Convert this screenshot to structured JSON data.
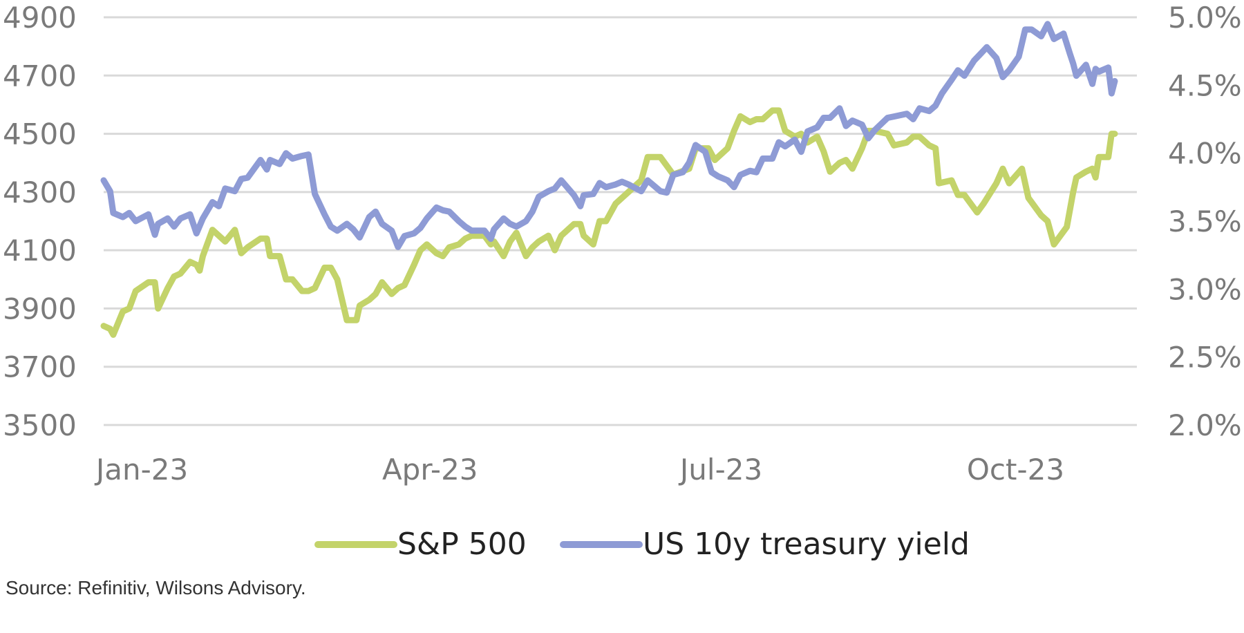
{
  "source_note": "Source: Refinitiv, Wilsons Advisory.",
  "chart_data": {
    "type": "line",
    "title": "",
    "xlabel": "",
    "ylabel": "",
    "x_ticks": [
      "Jan-23",
      "Apr-23",
      "Jul-23",
      "Oct-23"
    ],
    "y_left": {
      "min": 3500,
      "max": 4900,
      "ticks": [
        4900,
        4700,
        4500,
        4300,
        4100,
        3900,
        3700,
        3500
      ]
    },
    "y_right": {
      "min": 2.0,
      "max": 5.0,
      "ticks": [
        "5.0%",
        "4.5%",
        "4.0%",
        "3.5%",
        "3.0%",
        "2.5%",
        "2.0%"
      ]
    },
    "grid": true,
    "legend_position": "bottom",
    "series": [
      {
        "name": "S&P 500",
        "axis": "left",
        "color": "#c3d36a",
        "points": [
          [
            "2023-01-03",
            3840
          ],
          [
            "2023-01-05",
            3830
          ],
          [
            "2023-01-06",
            3810
          ],
          [
            "2023-01-09",
            3890
          ],
          [
            "2023-01-11",
            3900
          ],
          [
            "2023-01-13",
            3960
          ],
          [
            "2023-01-17",
            3990
          ],
          [
            "2023-01-19",
            3990
          ],
          [
            "2023-01-20",
            3900
          ],
          [
            "2023-01-23",
            3970
          ],
          [
            "2023-01-25",
            4010
          ],
          [
            "2023-01-27",
            4020
          ],
          [
            "2023-01-30",
            4060
          ],
          [
            "2023-02-01",
            4050
          ],
          [
            "2023-02-02",
            4030
          ],
          [
            "2023-02-03",
            4080
          ],
          [
            "2023-02-06",
            4170
          ],
          [
            "2023-02-08",
            4150
          ],
          [
            "2023-02-10",
            4130
          ],
          [
            "2023-02-13",
            4170
          ],
          [
            "2023-02-15",
            4090
          ],
          [
            "2023-02-17",
            4110
          ],
          [
            "2023-02-21",
            4140
          ],
          [
            "2023-02-23",
            4140
          ],
          [
            "2023-02-24",
            4080
          ],
          [
            "2023-02-27",
            4080
          ],
          [
            "2023-03-01",
            4000
          ],
          [
            "2023-03-03",
            4000
          ],
          [
            "2023-03-06",
            3960
          ],
          [
            "2023-03-08",
            3960
          ],
          [
            "2023-03-10",
            3970
          ],
          [
            "2023-03-13",
            4040
          ],
          [
            "2023-03-15",
            4040
          ],
          [
            "2023-03-17",
            4000
          ],
          [
            "2023-03-20",
            3860
          ],
          [
            "2023-03-23",
            3860
          ],
          [
            "2023-03-24",
            3910
          ],
          [
            "2023-03-27",
            3930
          ],
          [
            "2023-03-29",
            3950
          ],
          [
            "2023-03-31",
            3990
          ],
          [
            "2023-04-03",
            3950
          ],
          [
            "2023-04-05",
            3970
          ],
          [
            "2023-04-07",
            3980
          ],
          [
            "2023-04-10",
            4050
          ],
          [
            "2023-04-12",
            4100
          ],
          [
            "2023-04-14",
            4120
          ],
          [
            "2023-04-17",
            4090
          ],
          [
            "2023-04-19",
            4080
          ],
          [
            "2023-04-21",
            4110
          ],
          [
            "2023-04-24",
            4120
          ],
          [
            "2023-04-26",
            4140
          ],
          [
            "2023-04-28",
            4150
          ],
          [
            "2023-05-02",
            4150
          ],
          [
            "2023-05-04",
            4120
          ],
          [
            "2023-05-05",
            4130
          ],
          [
            "2023-05-08",
            4080
          ],
          [
            "2023-05-10",
            4130
          ],
          [
            "2023-05-12",
            4160
          ],
          [
            "2023-05-15",
            4080
          ],
          [
            "2023-05-17",
            4110
          ],
          [
            "2023-05-19",
            4130
          ],
          [
            "2023-05-22",
            4150
          ],
          [
            "2023-05-24",
            4100
          ],
          [
            "2023-05-26",
            4150
          ],
          [
            "2023-05-30",
            4190
          ],
          [
            "2023-06-01",
            4190
          ],
          [
            "2023-06-02",
            4150
          ],
          [
            "2023-06-05",
            4120
          ],
          [
            "2023-06-07",
            4200
          ],
          [
            "2023-06-09",
            4200
          ],
          [
            "2023-06-12",
            4260
          ],
          [
            "2023-06-14",
            4280
          ],
          [
            "2023-06-16",
            4300
          ],
          [
            "2023-06-20",
            4340
          ],
          [
            "2023-06-22",
            4420
          ],
          [
            "2023-06-26",
            4420
          ],
          [
            "2023-06-28",
            4390
          ],
          [
            "2023-06-30",
            4360
          ],
          [
            "2023-07-05",
            4380
          ],
          [
            "2023-07-07",
            4450
          ],
          [
            "2023-07-11",
            4450
          ],
          [
            "2023-07-13",
            4410
          ],
          [
            "2023-07-17",
            4450
          ],
          [
            "2023-07-19",
            4510
          ],
          [
            "2023-07-21",
            4560
          ],
          [
            "2023-07-24",
            4540
          ],
          [
            "2023-07-26",
            4550
          ],
          [
            "2023-07-28",
            4550
          ],
          [
            "2023-07-31",
            4580
          ],
          [
            "2023-08-02",
            4580
          ],
          [
            "2023-08-04",
            4510
          ],
          [
            "2023-08-07",
            4490
          ],
          [
            "2023-08-09",
            4500
          ],
          [
            "2023-08-11",
            4470
          ],
          [
            "2023-08-14",
            4490
          ],
          [
            "2023-08-16",
            4440
          ],
          [
            "2023-08-18",
            4370
          ],
          [
            "2023-08-21",
            4400
          ],
          [
            "2023-08-23",
            4410
          ],
          [
            "2023-08-25",
            4380
          ],
          [
            "2023-08-28",
            4450
          ],
          [
            "2023-08-30",
            4510
          ],
          [
            "2023-09-01",
            4510
          ],
          [
            "2023-09-05",
            4500
          ],
          [
            "2023-09-07",
            4460
          ],
          [
            "2023-09-11",
            4470
          ],
          [
            "2023-09-13",
            4490
          ],
          [
            "2023-09-15",
            4490
          ],
          [
            "2023-09-18",
            4460
          ],
          [
            "2023-09-20",
            4450
          ],
          [
            "2023-09-21",
            4330
          ],
          [
            "2023-09-25",
            4340
          ],
          [
            "2023-09-27",
            4290
          ],
          [
            "2023-09-29",
            4290
          ],
          [
            "2023-10-03",
            4230
          ],
          [
            "2023-10-05",
            4260
          ],
          [
            "2023-10-09",
            4330
          ],
          [
            "2023-10-11",
            4380
          ],
          [
            "2023-10-13",
            4330
          ],
          [
            "2023-10-17",
            4380
          ],
          [
            "2023-10-19",
            4280
          ],
          [
            "2023-10-23",
            4220
          ],
          [
            "2023-10-25",
            4200
          ],
          [
            "2023-10-27",
            4120
          ],
          [
            "2023-10-31",
            4180
          ],
          [
            "2023-11-02",
            4300
          ],
          [
            "2023-11-03",
            4350
          ],
          [
            "2023-11-06",
            4370
          ],
          [
            "2023-11-08",
            4380
          ],
          [
            "2023-11-09",
            4350
          ],
          [
            "2023-11-10",
            4420
          ],
          [
            "2023-11-13",
            4420
          ],
          [
            "2023-11-14",
            4500
          ],
          [
            "2023-11-15",
            4500
          ]
        ]
      },
      {
        "name": "US 10y treasury yield",
        "axis": "right",
        "color": "#8e9bd5",
        "points": [
          [
            "2023-01-03",
            3.8
          ],
          [
            "2023-01-05",
            3.72
          ],
          [
            "2023-01-06",
            3.56
          ],
          [
            "2023-01-09",
            3.53
          ],
          [
            "2023-01-11",
            3.56
          ],
          [
            "2023-01-13",
            3.5
          ],
          [
            "2023-01-17",
            3.55
          ],
          [
            "2023-01-19",
            3.4
          ],
          [
            "2023-01-20",
            3.48
          ],
          [
            "2023-01-23",
            3.52
          ],
          [
            "2023-01-25",
            3.46
          ],
          [
            "2023-01-27",
            3.52
          ],
          [
            "2023-01-30",
            3.55
          ],
          [
            "2023-02-01",
            3.41
          ],
          [
            "2023-02-03",
            3.52
          ],
          [
            "2023-02-06",
            3.64
          ],
          [
            "2023-02-08",
            3.61
          ],
          [
            "2023-02-10",
            3.74
          ],
          [
            "2023-02-13",
            3.72
          ],
          [
            "2023-02-15",
            3.81
          ],
          [
            "2023-02-17",
            3.82
          ],
          [
            "2023-02-21",
            3.95
          ],
          [
            "2023-02-23",
            3.88
          ],
          [
            "2023-02-24",
            3.95
          ],
          [
            "2023-02-27",
            3.92
          ],
          [
            "2023-03-01",
            4.0
          ],
          [
            "2023-03-03",
            3.96
          ],
          [
            "2023-03-06",
            3.98
          ],
          [
            "2023-03-08",
            3.99
          ],
          [
            "2023-03-10",
            3.7
          ],
          [
            "2023-03-13",
            3.55
          ],
          [
            "2023-03-15",
            3.46
          ],
          [
            "2023-03-17",
            3.43
          ],
          [
            "2023-03-20",
            3.48
          ],
          [
            "2023-03-22",
            3.44
          ],
          [
            "2023-03-24",
            3.38
          ],
          [
            "2023-03-27",
            3.53
          ],
          [
            "2023-03-29",
            3.57
          ],
          [
            "2023-03-31",
            3.48
          ],
          [
            "2023-04-03",
            3.43
          ],
          [
            "2023-04-05",
            3.31
          ],
          [
            "2023-04-07",
            3.39
          ],
          [
            "2023-04-10",
            3.41
          ],
          [
            "2023-04-12",
            3.45
          ],
          [
            "2023-04-14",
            3.52
          ],
          [
            "2023-04-17",
            3.6
          ],
          [
            "2023-04-19",
            3.58
          ],
          [
            "2023-04-21",
            3.57
          ],
          [
            "2023-04-24",
            3.5
          ],
          [
            "2023-04-26",
            3.46
          ],
          [
            "2023-04-28",
            3.43
          ],
          [
            "2023-05-02",
            3.43
          ],
          [
            "2023-05-04",
            3.37
          ],
          [
            "2023-05-05",
            3.44
          ],
          [
            "2023-05-08",
            3.52
          ],
          [
            "2023-05-10",
            3.48
          ],
          [
            "2023-05-12",
            3.46
          ],
          [
            "2023-05-15",
            3.5
          ],
          [
            "2023-05-17",
            3.57
          ],
          [
            "2023-05-19",
            3.68
          ],
          [
            "2023-05-22",
            3.72
          ],
          [
            "2023-05-24",
            3.74
          ],
          [
            "2023-05-26",
            3.8
          ],
          [
            "2023-05-30",
            3.69
          ],
          [
            "2023-06-01",
            3.61
          ],
          [
            "2023-06-02",
            3.69
          ],
          [
            "2023-06-05",
            3.7
          ],
          [
            "2023-06-07",
            3.78
          ],
          [
            "2023-06-09",
            3.75
          ],
          [
            "2023-06-12",
            3.77
          ],
          [
            "2023-06-14",
            3.79
          ],
          [
            "2023-06-16",
            3.77
          ],
          [
            "2023-06-20",
            3.72
          ],
          [
            "2023-06-22",
            3.8
          ],
          [
            "2023-06-26",
            3.72
          ],
          [
            "2023-06-28",
            3.71
          ],
          [
            "2023-06-30",
            3.84
          ],
          [
            "2023-07-03",
            3.86
          ],
          [
            "2023-07-05",
            3.93
          ],
          [
            "2023-07-07",
            4.06
          ],
          [
            "2023-07-10",
            4.01
          ],
          [
            "2023-07-12",
            3.86
          ],
          [
            "2023-07-14",
            3.83
          ],
          [
            "2023-07-17",
            3.8
          ],
          [
            "2023-07-19",
            3.75
          ],
          [
            "2023-07-21",
            3.84
          ],
          [
            "2023-07-24",
            3.87
          ],
          [
            "2023-07-26",
            3.86
          ],
          [
            "2023-07-28",
            3.96
          ],
          [
            "2023-07-31",
            3.96
          ],
          [
            "2023-08-02",
            4.08
          ],
          [
            "2023-08-04",
            4.05
          ],
          [
            "2023-08-07",
            4.1
          ],
          [
            "2023-08-09",
            4.01
          ],
          [
            "2023-08-11",
            4.16
          ],
          [
            "2023-08-14",
            4.19
          ],
          [
            "2023-08-16",
            4.26
          ],
          [
            "2023-08-18",
            4.26
          ],
          [
            "2023-08-21",
            4.33
          ],
          [
            "2023-08-23",
            4.2
          ],
          [
            "2023-08-25",
            4.24
          ],
          [
            "2023-08-28",
            4.21
          ],
          [
            "2023-08-30",
            4.11
          ],
          [
            "2023-09-01",
            4.17
          ],
          [
            "2023-09-05",
            4.26
          ],
          [
            "2023-09-07",
            4.27
          ],
          [
            "2023-09-11",
            4.29
          ],
          [
            "2023-09-13",
            4.25
          ],
          [
            "2023-09-15",
            4.33
          ],
          [
            "2023-09-18",
            4.31
          ],
          [
            "2023-09-20",
            4.35
          ],
          [
            "2023-09-22",
            4.44
          ],
          [
            "2023-09-25",
            4.54
          ],
          [
            "2023-09-27",
            4.61
          ],
          [
            "2023-09-29",
            4.57
          ],
          [
            "2023-10-02",
            4.68
          ],
          [
            "2023-10-04",
            4.73
          ],
          [
            "2023-10-06",
            4.78
          ],
          [
            "2023-10-09",
            4.7
          ],
          [
            "2023-10-11",
            4.56
          ],
          [
            "2023-10-13",
            4.61
          ],
          [
            "2023-10-16",
            4.71
          ],
          [
            "2023-10-18",
            4.91
          ],
          [
            "2023-10-20",
            4.91
          ],
          [
            "2023-10-23",
            4.86
          ],
          [
            "2023-10-25",
            4.95
          ],
          [
            "2023-10-27",
            4.84
          ],
          [
            "2023-10-30",
            4.88
          ],
          [
            "2023-11-01",
            4.73
          ],
          [
            "2023-11-02",
            4.66
          ],
          [
            "2023-11-03",
            4.57
          ],
          [
            "2023-11-06",
            4.65
          ],
          [
            "2023-11-08",
            4.51
          ],
          [
            "2023-11-09",
            4.62
          ],
          [
            "2023-11-10",
            4.6
          ],
          [
            "2023-11-13",
            4.63
          ],
          [
            "2023-11-14",
            4.44
          ],
          [
            "2023-11-15",
            4.53
          ]
        ]
      }
    ]
  }
}
